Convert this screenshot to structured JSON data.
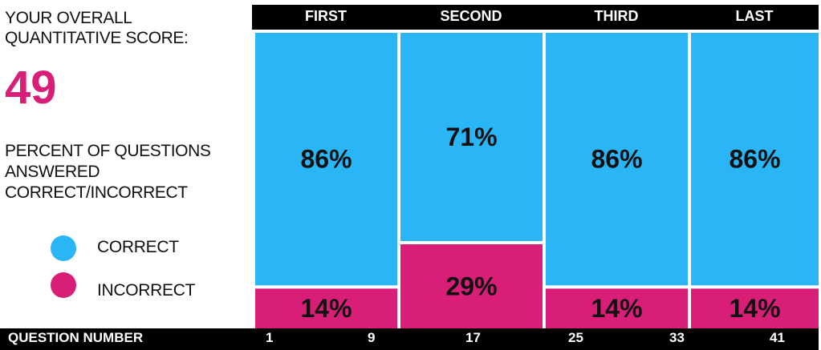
{
  "sidebar": {
    "title": "YOUR OVERALL QUANTITATIVE SCORE:",
    "score": "49",
    "percent_label": "PERCENT OF QUESTIONS ANSWERED CORRECT/INCORRECT"
  },
  "legend": [
    {
      "label": "CORRECT",
      "color": "#29b5f6"
    },
    {
      "label": "INCORRECT",
      "color": "#d81e76"
    }
  ],
  "footer": {
    "title": "QUESTION  NUMBER"
  },
  "chart_data": {
    "type": "bar",
    "stacked": true,
    "percent_scale": true,
    "categories": [
      "FIRST",
      "SECOND",
      "THIRD",
      "LAST"
    ],
    "series": [
      {
        "name": "CORRECT",
        "color": "#29b5f6",
        "values": [
          86,
          71,
          86,
          86
        ],
        "labels": [
          "86%",
          "71%",
          "86%",
          "86%"
        ]
      },
      {
        "name": "INCORRECT",
        "color": "#d81e76",
        "values": [
          14,
          29,
          14,
          14
        ],
        "labels": [
          "14%",
          "29%",
          "14%",
          "14%"
        ]
      }
    ],
    "xlabel": "QUESTION  NUMBER",
    "x_ticks": [
      "1",
      "9",
      "17",
      "25",
      "33",
      "41"
    ],
    "ylim": [
      0,
      100
    ],
    "grid": false,
    "legend_position": "left"
  }
}
